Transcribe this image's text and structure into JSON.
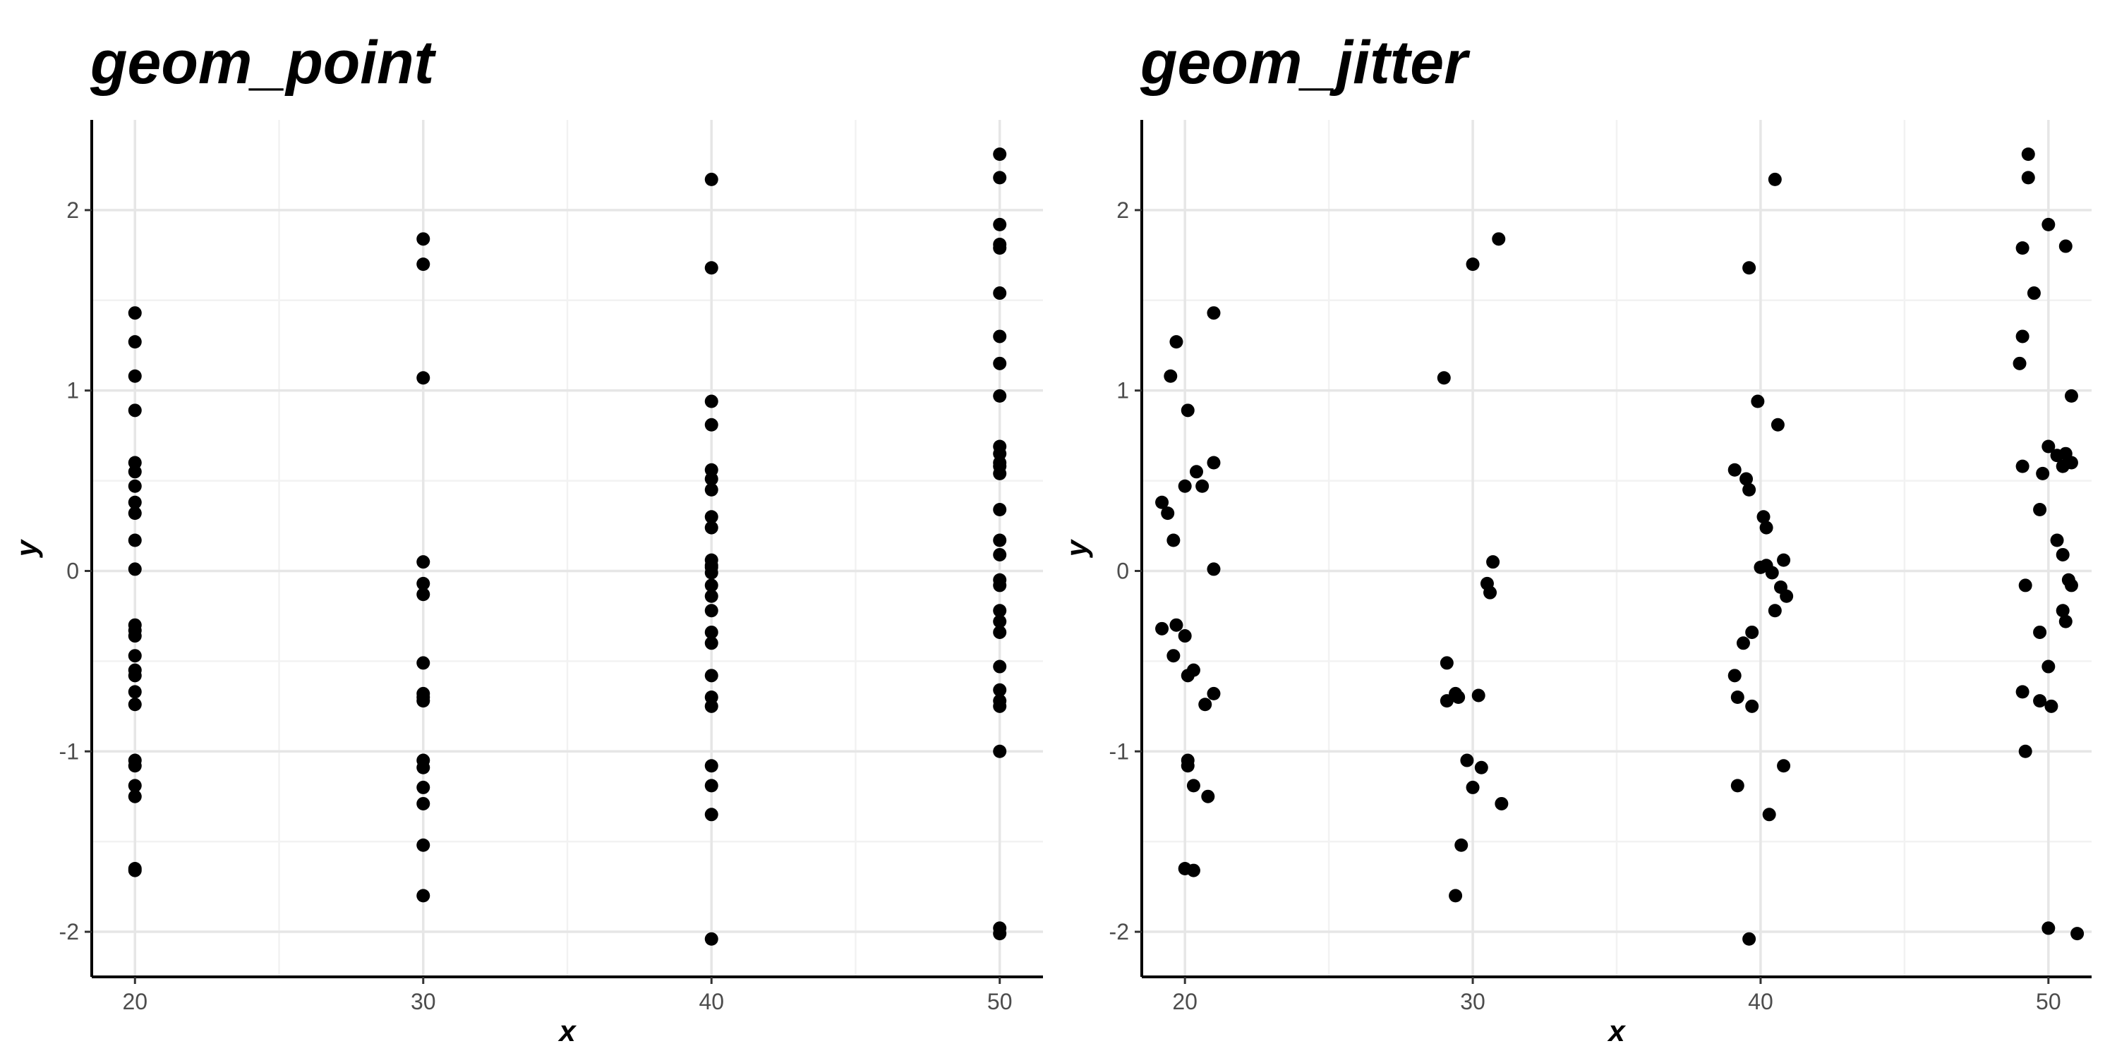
{
  "chart_data": [
    {
      "type": "scatter",
      "title": "geom_point",
      "xlabel": "x",
      "ylabel": "y",
      "xlim": [
        18.5,
        51.5
      ],
      "ylim": [
        -2.25,
        2.5
      ],
      "xticks": [
        20,
        30,
        40,
        50
      ],
      "yticks": [
        -2,
        -1,
        0,
        1,
        2
      ],
      "xtick_labels": [
        "20",
        "30",
        "40",
        "50"
      ],
      "ytick_labels": [
        "-2",
        "-1",
        "0",
        "1",
        "2"
      ],
      "grid": true,
      "point_color": "#000000",
      "points": [
        {
          "x": 20,
          "y": 1.43
        },
        {
          "x": 20,
          "y": 1.27
        },
        {
          "x": 20,
          "y": 1.08
        },
        {
          "x": 20,
          "y": 0.89
        },
        {
          "x": 20,
          "y": 0.6
        },
        {
          "x": 20,
          "y": 0.55
        },
        {
          "x": 20,
          "y": 0.47
        },
        {
          "x": 20,
          "y": 0.38
        },
        {
          "x": 20,
          "y": 0.32
        },
        {
          "x": 20,
          "y": 0.17
        },
        {
          "x": 20,
          "y": 0.01
        },
        {
          "x": 20,
          "y": -0.3
        },
        {
          "x": 20,
          "y": -0.33
        },
        {
          "x": 20,
          "y": -0.36
        },
        {
          "x": 20,
          "y": -0.47
        },
        {
          "x": 20,
          "y": -0.55
        },
        {
          "x": 20,
          "y": -0.58
        },
        {
          "x": 20,
          "y": -0.67
        },
        {
          "x": 20,
          "y": -0.74
        },
        {
          "x": 20,
          "y": -1.05
        },
        {
          "x": 20,
          "y": -1.08
        },
        {
          "x": 20,
          "y": -1.19
        },
        {
          "x": 20,
          "y": -1.25
        },
        {
          "x": 20,
          "y": -1.65
        },
        {
          "x": 20,
          "y": -1.66
        },
        {
          "x": 30,
          "y": 1.84
        },
        {
          "x": 30,
          "y": 1.7
        },
        {
          "x": 30,
          "y": 1.07
        },
        {
          "x": 30,
          "y": 0.05
        },
        {
          "x": 30,
          "y": -0.07
        },
        {
          "x": 30,
          "y": -0.13
        },
        {
          "x": 30,
          "y": -0.51
        },
        {
          "x": 30,
          "y": -0.68
        },
        {
          "x": 30,
          "y": -0.7
        },
        {
          "x": 30,
          "y": -0.72
        },
        {
          "x": 30,
          "y": -1.05
        },
        {
          "x": 30,
          "y": -1.09
        },
        {
          "x": 30,
          "y": -1.2
        },
        {
          "x": 30,
          "y": -1.29
        },
        {
          "x": 30,
          "y": -1.52
        },
        {
          "x": 30,
          "y": -1.8
        },
        {
          "x": 40,
          "y": 2.17
        },
        {
          "x": 40,
          "y": 1.68
        },
        {
          "x": 40,
          "y": 0.94
        },
        {
          "x": 40,
          "y": 0.81
        },
        {
          "x": 40,
          "y": 0.56
        },
        {
          "x": 40,
          "y": 0.51
        },
        {
          "x": 40,
          "y": 0.45
        },
        {
          "x": 40,
          "y": 0.3
        },
        {
          "x": 40,
          "y": 0.24
        },
        {
          "x": 40,
          "y": 0.06
        },
        {
          "x": 40,
          "y": 0.03
        },
        {
          "x": 40,
          "y": 0.02
        },
        {
          "x": 40,
          "y": -0.01
        },
        {
          "x": 40,
          "y": -0.08
        },
        {
          "x": 40,
          "y": -0.14
        },
        {
          "x": 40,
          "y": -0.22
        },
        {
          "x": 40,
          "y": -0.34
        },
        {
          "x": 40,
          "y": -0.4
        },
        {
          "x": 40,
          "y": -0.58
        },
        {
          "x": 40,
          "y": -0.7
        },
        {
          "x": 40,
          "y": -0.75
        },
        {
          "x": 40,
          "y": -1.08
        },
        {
          "x": 40,
          "y": -1.19
        },
        {
          "x": 40,
          "y": -1.35
        },
        {
          "x": 40,
          "y": -2.04
        },
        {
          "x": 50,
          "y": 2.31
        },
        {
          "x": 50,
          "y": 2.18
        },
        {
          "x": 50,
          "y": 1.92
        },
        {
          "x": 50,
          "y": 1.81
        },
        {
          "x": 50,
          "y": 1.79
        },
        {
          "x": 50,
          "y": 1.54
        },
        {
          "x": 50,
          "y": 1.3
        },
        {
          "x": 50,
          "y": 1.15
        },
        {
          "x": 50,
          "y": 0.97
        },
        {
          "x": 50,
          "y": 0.69
        },
        {
          "x": 50,
          "y": 0.65
        },
        {
          "x": 50,
          "y": 0.6
        },
        {
          "x": 50,
          "y": 0.58
        },
        {
          "x": 50,
          "y": 0.54
        },
        {
          "x": 50,
          "y": 0.34
        },
        {
          "x": 50,
          "y": 0.17
        },
        {
          "x": 50,
          "y": 0.09
        },
        {
          "x": 50,
          "y": -0.05
        },
        {
          "x": 50,
          "y": -0.08
        },
        {
          "x": 50,
          "y": -0.22
        },
        {
          "x": 50,
          "y": -0.28
        },
        {
          "x": 50,
          "y": -0.34
        },
        {
          "x": 50,
          "y": -0.53
        },
        {
          "x": 50,
          "y": -0.66
        },
        {
          "x": 50,
          "y": -0.72
        },
        {
          "x": 50,
          "y": -0.75
        },
        {
          "x": 50,
          "y": -1.0
        },
        {
          "x": 50,
          "y": -1.98
        },
        {
          "x": 50,
          "y": -2.01
        }
      ]
    },
    {
      "type": "scatter",
      "title": "geom_jitter",
      "xlabel": "x",
      "ylabel": "y",
      "xlim": [
        18.5,
        51.5
      ],
      "ylim": [
        -2.25,
        2.5
      ],
      "xticks": [
        20,
        30,
        40,
        50
      ],
      "yticks": [
        -2,
        -1,
        0,
        1,
        2
      ],
      "xtick_labels": [
        "20",
        "30",
        "40",
        "50"
      ],
      "ytick_labels": [
        "-2",
        "-1",
        "0",
        "1",
        "2"
      ],
      "grid": true,
      "point_color": "#000000",
      "points": [
        {
          "x": 21.0,
          "y": 1.43
        },
        {
          "x": 19.7,
          "y": 1.27
        },
        {
          "x": 19.5,
          "y": 1.08
        },
        {
          "x": 20.1,
          "y": 0.89
        },
        {
          "x": 21.0,
          "y": 0.6
        },
        {
          "x": 20.4,
          "y": 0.55
        },
        {
          "x": 20.6,
          "y": 0.47
        },
        {
          "x": 20.0,
          "y": 0.47
        },
        {
          "x": 19.2,
          "y": 0.38
        },
        {
          "x": 19.4,
          "y": 0.32
        },
        {
          "x": 19.6,
          "y": 0.17
        },
        {
          "x": 21.0,
          "y": 0.01
        },
        {
          "x": 19.2,
          "y": -0.32
        },
        {
          "x": 19.7,
          "y": -0.3
        },
        {
          "x": 20.0,
          "y": -0.36
        },
        {
          "x": 19.6,
          "y": -0.47
        },
        {
          "x": 20.3,
          "y": -0.55
        },
        {
          "x": 20.1,
          "y": -0.58
        },
        {
          "x": 21.0,
          "y": -0.68
        },
        {
          "x": 20.7,
          "y": -0.74
        },
        {
          "x": 20.1,
          "y": -1.05
        },
        {
          "x": 20.1,
          "y": -1.08
        },
        {
          "x": 20.3,
          "y": -1.19
        },
        {
          "x": 20.8,
          "y": -1.25
        },
        {
          "x": 20.0,
          "y": -1.65
        },
        {
          "x": 20.3,
          "y": -1.66
        },
        {
          "x": 30.9,
          "y": 1.84
        },
        {
          "x": 30.0,
          "y": 1.7
        },
        {
          "x": 29.0,
          "y": 1.07
        },
        {
          "x": 30.7,
          "y": 0.05
        },
        {
          "x": 30.5,
          "y": -0.07
        },
        {
          "x": 30.6,
          "y": -0.12
        },
        {
          "x": 29.1,
          "y": -0.51
        },
        {
          "x": 29.4,
          "y": -0.68
        },
        {
          "x": 30.2,
          "y": -0.69
        },
        {
          "x": 29.5,
          "y": -0.7
        },
        {
          "x": 29.1,
          "y": -0.72
        },
        {
          "x": 29.8,
          "y": -1.05
        },
        {
          "x": 30.3,
          "y": -1.09
        },
        {
          "x": 30.0,
          "y": -1.2
        },
        {
          "x": 31.0,
          "y": -1.29
        },
        {
          "x": 29.6,
          "y": -1.52
        },
        {
          "x": 29.4,
          "y": -1.8
        },
        {
          "x": 40.5,
          "y": 2.17
        },
        {
          "x": 39.6,
          "y": 1.68
        },
        {
          "x": 39.9,
          "y": 0.94
        },
        {
          "x": 40.6,
          "y": 0.81
        },
        {
          "x": 39.1,
          "y": 0.56
        },
        {
          "x": 39.5,
          "y": 0.51
        },
        {
          "x": 39.6,
          "y": 0.45
        },
        {
          "x": 40.1,
          "y": 0.3
        },
        {
          "x": 40.2,
          "y": 0.24
        },
        {
          "x": 40.8,
          "y": 0.06
        },
        {
          "x": 40.2,
          "y": 0.03
        },
        {
          "x": 40.0,
          "y": 0.02
        },
        {
          "x": 40.4,
          "y": -0.01
        },
        {
          "x": 40.7,
          "y": -0.09
        },
        {
          "x": 40.9,
          "y": -0.14
        },
        {
          "x": 40.5,
          "y": -0.22
        },
        {
          "x": 39.7,
          "y": -0.34
        },
        {
          "x": 39.4,
          "y": -0.4
        },
        {
          "x": 39.1,
          "y": -0.58
        },
        {
          "x": 39.2,
          "y": -0.7
        },
        {
          "x": 39.7,
          "y": -0.75
        },
        {
          "x": 40.8,
          "y": -1.08
        },
        {
          "x": 39.2,
          "y": -1.19
        },
        {
          "x": 40.3,
          "y": -1.35
        },
        {
          "x": 39.6,
          "y": -2.04
        },
        {
          "x": 49.3,
          "y": 2.31
        },
        {
          "x": 49.3,
          "y": 2.18
        },
        {
          "x": 50.0,
          "y": 1.92
        },
        {
          "x": 49.1,
          "y": 1.79
        },
        {
          "x": 50.6,
          "y": 1.8
        },
        {
          "x": 49.5,
          "y": 1.54
        },
        {
          "x": 49.1,
          "y": 1.3
        },
        {
          "x": 49.0,
          "y": 1.15
        },
        {
          "x": 50.8,
          "y": 0.97
        },
        {
          "x": 50.0,
          "y": 0.69
        },
        {
          "x": 50.3,
          "y": 0.64
        },
        {
          "x": 50.6,
          "y": 0.65
        },
        {
          "x": 50.8,
          "y": 0.6
        },
        {
          "x": 50.5,
          "y": 0.58
        },
        {
          "x": 49.1,
          "y": 0.58
        },
        {
          "x": 49.8,
          "y": 0.54
        },
        {
          "x": 49.7,
          "y": 0.34
        },
        {
          "x": 50.3,
          "y": 0.17
        },
        {
          "x": 50.5,
          "y": 0.09
        },
        {
          "x": 50.7,
          "y": -0.05
        },
        {
          "x": 50.8,
          "y": -0.08
        },
        {
          "x": 49.2,
          "y": -0.08
        },
        {
          "x": 50.5,
          "y": -0.22
        },
        {
          "x": 50.6,
          "y": -0.28
        },
        {
          "x": 49.7,
          "y": -0.34
        },
        {
          "x": 50.0,
          "y": -0.53
        },
        {
          "x": 49.1,
          "y": -0.67
        },
        {
          "x": 49.7,
          "y": -0.72
        },
        {
          "x": 50.1,
          "y": -0.75
        },
        {
          "x": 49.2,
          "y": -1.0
        },
        {
          "x": 50.0,
          "y": -1.98
        },
        {
          "x": 51.0,
          "y": -2.01
        }
      ]
    }
  ]
}
